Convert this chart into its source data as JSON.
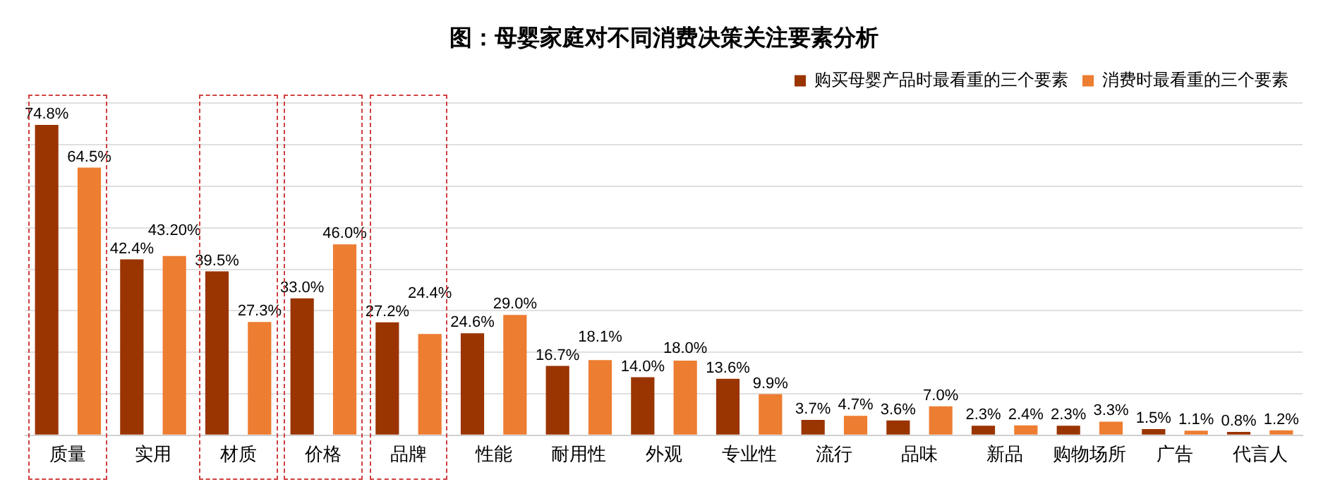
{
  "chart_data": {
    "type": "bar",
    "title": "图：母婴家庭对不同消费决策关注要素分析",
    "categories": [
      "质量",
      "实用",
      "材质",
      "价格",
      "品牌",
      "性能",
      "耐用性",
      "外观",
      "专业性",
      "流行",
      "品味",
      "新品",
      "购物场所",
      "广告",
      "代言人"
    ],
    "series": [
      {
        "name": "购买母婴产品时最看重的三个要素",
        "color": "#9a3400",
        "values": [
          74.8,
          42.4,
          39.5,
          33.0,
          27.2,
          24.6,
          16.7,
          14.0,
          13.6,
          3.7,
          3.6,
          2.3,
          2.3,
          1.5,
          0.8
        ],
        "value_labels": [
          "74.8%",
          "42.4%",
          "39.5%",
          "33.0%",
          "27.2%",
          "24.6%",
          "16.7%",
          "14.0%",
          "13.6%",
          "3.7%",
          "3.6%",
          "2.3%",
          "2.3%",
          "1.5%",
          "0.8%"
        ]
      },
      {
        "name": "消费时最看重的三个要素",
        "color": "#ed7d31",
        "values": [
          64.5,
          43.2,
          27.3,
          46.0,
          24.4,
          29.0,
          18.1,
          18.0,
          9.9,
          4.7,
          7.0,
          2.4,
          3.3,
          1.1,
          1.2
        ],
        "value_labels": [
          "64.5%",
          "43.20%",
          "27.3%",
          "46.0%",
          "24.4%",
          "29.0%",
          "18.1%",
          "18.0%",
          "9.9%",
          "4.7%",
          "7.0%",
          "2.4%",
          "3.3%",
          "1.1%",
          "1.2%"
        ]
      }
    ],
    "ylim": [
      0,
      80
    ],
    "yticks": [
      {
        "value": 0,
        "label": null
      },
      {
        "value": 10,
        "label": null
      },
      {
        "value": 20,
        "label": null
      },
      {
        "value": 30,
        "label": null
      },
      {
        "value": 40,
        "label": null
      },
      {
        "value": 50,
        "label": null
      },
      {
        "value": 60,
        "label": null
      },
      {
        "value": 70,
        "label": null
      },
      {
        "value": 80,
        "label": null
      }
    ],
    "tick_labels": "x",
    "grid": "y",
    "legend": "top right"
  }
}
